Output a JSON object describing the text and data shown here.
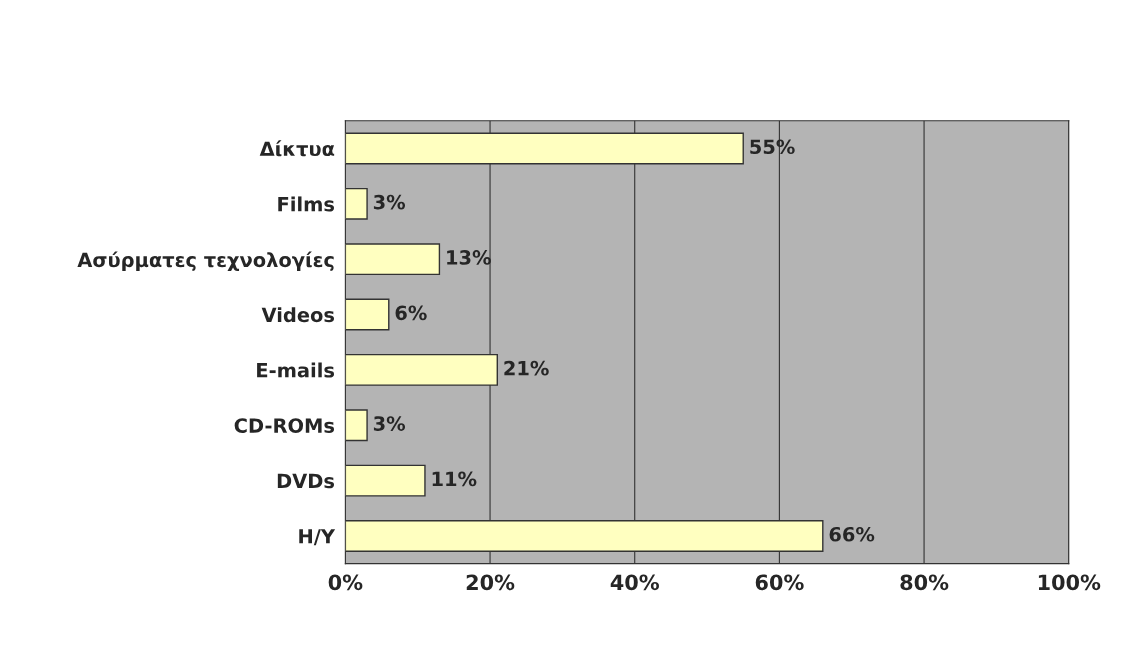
{
  "chart_data": {
    "type": "bar",
    "orientation": "horizontal",
    "categories": [
      "Δίκτυα",
      "Films",
      "Ασύρματες τεχνολογίες",
      "Videos",
      "E-mails",
      "CD-ROMs",
      "DVDs",
      "H/Y"
    ],
    "values": [
      55,
      3,
      13,
      6,
      21,
      3,
      11,
      66
    ],
    "value_labels": [
      "55%",
      "3%",
      "13%",
      "6%",
      "21%",
      "3%",
      "11%",
      "66%"
    ],
    "color": "#ffffc0",
    "xlim": [
      0,
      100
    ],
    "xticks": [
      {
        "value": 0,
        "label": "0%"
      },
      {
        "value": 20,
        "label": "20%"
      },
      {
        "value": 40,
        "label": "40%"
      },
      {
        "value": 60,
        "label": "60%"
      },
      {
        "value": 80,
        "label": "80%"
      },
      {
        "value": 100,
        "label": "100%"
      }
    ],
    "grid": "x"
  }
}
